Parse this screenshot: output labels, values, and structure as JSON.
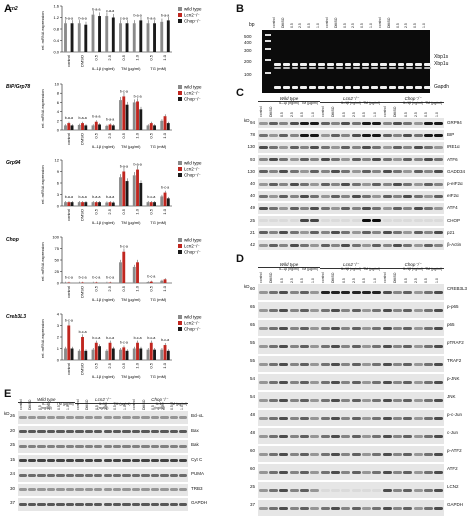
{
  "panels": {
    "A": "A",
    "B": "B",
    "C": "C",
    "D": "D",
    "E": "E"
  },
  "legend": {
    "wt": "wild type",
    "lcn2": "Lcn2⁻/⁻",
    "chop": "Chop⁻/⁻",
    "colors": {
      "wt": "#8a8a8a",
      "lcn2": "#c0261f",
      "chop": "#1a1a1a"
    }
  },
  "panelA": {
    "ylabel": "rel. mRNA expression",
    "xlabels": [
      "control",
      "DMSO",
      "0.5",
      "2.5",
      "0.5",
      "1.0",
      "0.5",
      "1.0"
    ],
    "groups": [
      "IL-1β (ng/ml)",
      "TM (µg/ml)",
      "TG (mM)"
    ],
    "charts": [
      {
        "gene": "Lcn2",
        "ymax": 1.6,
        "ticks": [
          "0.0",
          "0.4",
          "0.8",
          "1.2",
          "1.6"
        ],
        "annot": [
          "b-a-a",
          "b-a-a",
          "b-a-a",
          "c-a-a",
          "c-a-a",
          "b-a-a",
          "b-a-a",
          "b-a-a"
        ]
      },
      {
        "gene": "BiP/Grp78",
        "ymax": 10,
        "ticks": [
          "0",
          "2",
          "4",
          "6",
          "8",
          "10"
        ],
        "annot": [
          "b-a-a",
          "b-a-a",
          "b-a-a",
          "b-a-a",
          "b-c-a",
          "b-c-a",
          "",
          ""
        ]
      },
      {
        "gene": "Grp94",
        "ymax": 12,
        "ticks": [
          "0",
          "3",
          "6",
          "9",
          "12"
        ],
        "annot": [
          "b-a-a",
          "b-a-a",
          "b-a-a",
          "b-a-a",
          "b-a-a",
          "b-a-a",
          "b-c-a",
          "b-c-a"
        ]
      },
      {
        "gene": "Chop",
        "ymax": 100,
        "ticks": [
          "0",
          "25",
          "50",
          "75",
          "100"
        ],
        "annot": [
          "b-c-a",
          "b-c-a",
          "b-c-a",
          "b-c-a",
          "b-c-a",
          "",
          "b-c-a",
          ""
        ]
      },
      {
        "gene": "Creb3L3",
        "ymax": 4,
        "ticks": [
          "0",
          "1",
          "2",
          "3",
          "4"
        ],
        "annot": [
          "b-c-a",
          "b-c-a",
          "b-c-a",
          "b-c-a",
          "b-c-a",
          "b-c-a",
          "b-c-a",
          "b-c-a"
        ]
      }
    ]
  },
  "chart_data": [
    {
      "type": "bar",
      "title": "Lcn2",
      "ylabel": "rel. mRNA expression",
      "categories": [
        "control",
        "DMSO",
        "IL-1β 0.5",
        "IL-1β 2.5",
        "TM 0.5",
        "TM 1.0",
        "TG 0.5",
        "TG 1.0"
      ],
      "ylim": [
        0,
        1.6
      ],
      "series": [
        {
          "name": "wild type",
          "values": [
            1.0,
            1.0,
            1.3,
            1.25,
            1.0,
            1.0,
            1.0,
            1.05
          ]
        },
        {
          "name": "Lcn2⁻/⁻",
          "values": [
            0,
            0,
            0,
            0,
            0,
            0,
            0,
            0
          ]
        },
        {
          "name": "Chop⁻/⁻",
          "values": [
            1.0,
            0.95,
            1.25,
            1.2,
            1.0,
            1.1,
            1.0,
            1.1
          ]
        }
      ]
    },
    {
      "type": "bar",
      "title": "BiP/Grp78",
      "ylabel": "rel. mRNA expression",
      "categories": [
        "control",
        "DMSO",
        "IL-1β 0.5",
        "IL-1β 2.5",
        "TM 0.5",
        "TM 1.0",
        "TG 0.5",
        "TG 1.0"
      ],
      "ylim": [
        0,
        10
      ],
      "series": [
        {
          "name": "wild type",
          "values": [
            1.0,
            1.1,
            1.0,
            0.9,
            6.5,
            6.0,
            1.0,
            2.0
          ]
        },
        {
          "name": "Lcn2⁻/⁻",
          "values": [
            1.5,
            1.5,
            1.8,
            1.2,
            7.3,
            6.2,
            1.5,
            3.0
          ]
        },
        {
          "name": "Chop⁻/⁻",
          "values": [
            1.0,
            1.0,
            1.2,
            1.0,
            5.5,
            4.5,
            1.0,
            1.5
          ]
        }
      ]
    },
    {
      "type": "bar",
      "title": "Grp94",
      "ylabel": "rel. mRNA expression",
      "categories": [
        "control",
        "DMSO",
        "IL-1β 0.5",
        "IL-1β 2.5",
        "TM 0.5",
        "TM 1.0",
        "TG 0.5",
        "TG 1.0"
      ],
      "ylim": [
        0,
        12
      ],
      "series": [
        {
          "name": "wild type",
          "values": [
            1.0,
            1.0,
            1.0,
            0.9,
            7.5,
            8.0,
            1.0,
            2.5
          ]
        },
        {
          "name": "Lcn2⁻/⁻",
          "values": [
            1.0,
            1.0,
            1.0,
            1.0,
            9.0,
            9.5,
            1.0,
            3.5
          ]
        },
        {
          "name": "Chop⁻/⁻",
          "values": [
            1.0,
            1.0,
            1.0,
            0.9,
            6.5,
            6.0,
            1.0,
            2.0
          ]
        }
      ]
    },
    {
      "type": "bar",
      "title": "Chop",
      "ylabel": "rel. mRNA expression",
      "categories": [
        "control",
        "DMSO",
        "IL-1β 0.5",
        "IL-1β 2.5",
        "TM 0.5",
        "TM 1.0",
        "TG 0.5",
        "TG 1.0"
      ],
      "ylim": [
        0,
        100
      ],
      "series": [
        {
          "name": "wild type",
          "values": [
            1,
            1,
            1,
            1,
            45,
            35,
            2,
            5
          ]
        },
        {
          "name": "Lcn2⁻/⁻",
          "values": [
            1,
            1,
            1,
            1,
            68,
            45,
            3,
            8
          ]
        },
        {
          "name": "Chop⁻/⁻",
          "values": [
            0,
            0,
            0,
            0,
            0,
            0,
            0,
            0
          ]
        }
      ]
    },
    {
      "type": "bar",
      "title": "Creb3L3",
      "ylabel": "rel. mRNA expression",
      "categories": [
        "control",
        "DMSO",
        "IL-1β 0.5",
        "IL-1β 2.5",
        "TM 0.5",
        "TM 1.0",
        "TG 0.5",
        "TG 1.0"
      ],
      "ylim": [
        0,
        4
      ],
      "series": [
        {
          "name": "wild type",
          "values": [
            1.0,
            0.8,
            0.9,
            0.8,
            0.9,
            1.0,
            0.9,
            0.9
          ]
        },
        {
          "name": "Lcn2⁻/⁻",
          "values": [
            3.0,
            2.0,
            1.5,
            1.5,
            1.1,
            1.5,
            1.5,
            1.3
          ]
        },
        {
          "name": "Chop⁻/⁻",
          "values": [
            1.0,
            0.8,
            1.2,
            1.0,
            0.8,
            1.0,
            0.9,
            0.8
          ]
        }
      ]
    }
  ],
  "panelB": {
    "bp": "bp",
    "markers": [
      "500",
      "400",
      "300",
      "200",
      "100"
    ],
    "lanes": [
      "control",
      "DMSO",
      "0.5",
      "2.5",
      "0.5",
      "1.0",
      "control",
      "DMSO",
      "0.5",
      "2.5",
      "0.5",
      "1.0",
      "control",
      "DMSO",
      "0.5",
      "2.5",
      "0.5",
      "1.0"
    ],
    "labels": [
      "Xbp1s",
      "Xbp1u",
      "Gapdh"
    ],
    "groups": [
      "IL-1β (ng/ml)",
      "TM (µg/ml)"
    ]
  },
  "header": {
    "genotypes": [
      "Wild type",
      "Lcn2⁻/⁻",
      "Chop⁻/⁻"
    ],
    "groups": [
      "IL-1β (ng/ml)",
      "TM (µg/ml)"
    ],
    "lanes": [
      "control",
      "DMSO",
      "0.5",
      "2.5",
      "0.5",
      "1.0"
    ],
    "kD": "kD"
  },
  "panelC": {
    "rows": [
      {
        "mw": "94",
        "label": "GRP94"
      },
      {
        "mw": "78",
        "label": "BIP"
      },
      {
        "mw": "130",
        "label": "IRE1α"
      },
      {
        "mw": "93",
        "label": "ATF6"
      },
      {
        "mw": "130",
        "label": "GADD34"
      },
      {
        "mw": "40",
        "label": "p-eIF2α"
      },
      {
        "mw": "40",
        "label": "eIF2α"
      },
      {
        "mw": "49",
        "label": "ATF4"
      },
      {
        "mw": "25",
        "label": "CHOP"
      },
      {
        "mw": "21",
        "label": "p21"
      },
      {
        "mw": "42",
        "label": "β-Actin"
      }
    ]
  },
  "panelD": {
    "rows": [
      {
        "mw": "60",
        "label": "CREB3L3"
      },
      {
        "mw": "65",
        "label": "p-p65"
      },
      {
        "mw": "65",
        "label": "p65"
      },
      {
        "mw": "55",
        "label": "pTRAF2"
      },
      {
        "mw": "55",
        "label": "TRAF2"
      },
      {
        "mw": "54",
        "label": "p-JNK"
      },
      {
        "mw": "54",
        "label": "JNK"
      },
      {
        "mw": "48",
        "label": "p-c-Jun"
      },
      {
        "mw": "48",
        "label": "c-Jun"
      },
      {
        "mw": "60",
        "label": "p-ATF2"
      },
      {
        "mw": "60",
        "label": "ATF2"
      },
      {
        "mw": "25",
        "label": "LCN2"
      },
      {
        "mw": "37",
        "label": "GAPDH"
      }
    ]
  },
  "panelE": {
    "rows": [
      {
        "mw": "26",
        "label": "Bcl-xL"
      },
      {
        "mw": "20",
        "label": "Bax"
      },
      {
        "mw": "25",
        "label": "Bak"
      },
      {
        "mw": "15",
        "label": "Cyt C"
      },
      {
        "mw": "24",
        "label": "PUMA"
      },
      {
        "mw": "30",
        "label": "TRB3"
      },
      {
        "mw": "37",
        "label": "GAPDH"
      }
    ]
  }
}
